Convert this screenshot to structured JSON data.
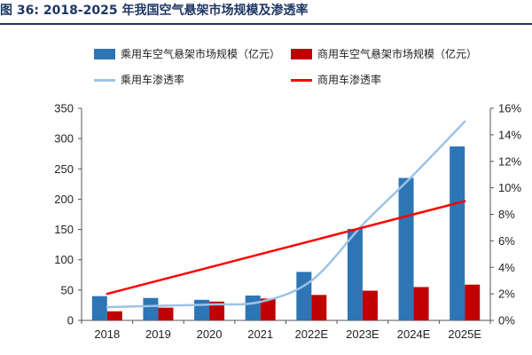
{
  "header": {
    "figure_label": "图 36:",
    "title": "2018-2025 年我国空气悬架市场规模及渗透率"
  },
  "colors": {
    "title": "#1f3864",
    "passenger_bar": "#2e75b6",
    "commercial_bar": "#c00000",
    "passenger_line": "#9dc3e6",
    "commercial_line": "#ff0000",
    "axis": "#555555",
    "tick_text": "#222222"
  },
  "chart_data": {
    "type": "bar",
    "title": "2018-2025 年我国空气悬架市场规模及渗透率",
    "categories": [
      "2018",
      "2019",
      "2020",
      "2021",
      "2022E",
      "2023E",
      "2024E",
      "2025E"
    ],
    "series": [
      {
        "name": "乘用车空气悬架市场规模（亿元）",
        "kind": "bar",
        "axis": "left",
        "values": [
          40,
          37,
          34,
          41,
          80,
          151,
          235,
          287
        ]
      },
      {
        "name": "商用车空气悬架市场规模（亿元）",
        "kind": "bar",
        "axis": "left",
        "values": [
          15,
          21,
          31,
          36,
          42,
          49,
          55,
          59
        ]
      },
      {
        "name": "乘用车渗透率",
        "kind": "line",
        "axis": "right",
        "smooth": true,
        "values": [
          1.0,
          1.1,
          1.2,
          1.4,
          3.0,
          7.2,
          11.0,
          15.0
        ]
      },
      {
        "name": "商用车渗透率",
        "kind": "line",
        "axis": "right",
        "smooth": false,
        "values": [
          2.0,
          3.0,
          4.0,
          5.0,
          6.0,
          7.0,
          8.0,
          9.0
        ]
      }
    ],
    "y_left": {
      "min": 0,
      "max": 350,
      "ticks": [
        "0",
        "50",
        "100",
        "150",
        "200",
        "250",
        "300",
        "350"
      ]
    },
    "y_right": {
      "min": 0,
      "max": 16,
      "ticks": [
        "0%",
        "2%",
        "4%",
        "6%",
        "8%",
        "10%",
        "12%",
        "14%",
        "16%"
      ]
    },
    "xlabel": "",
    "ylabel": "",
    "grid": false,
    "legend_position": "top"
  }
}
